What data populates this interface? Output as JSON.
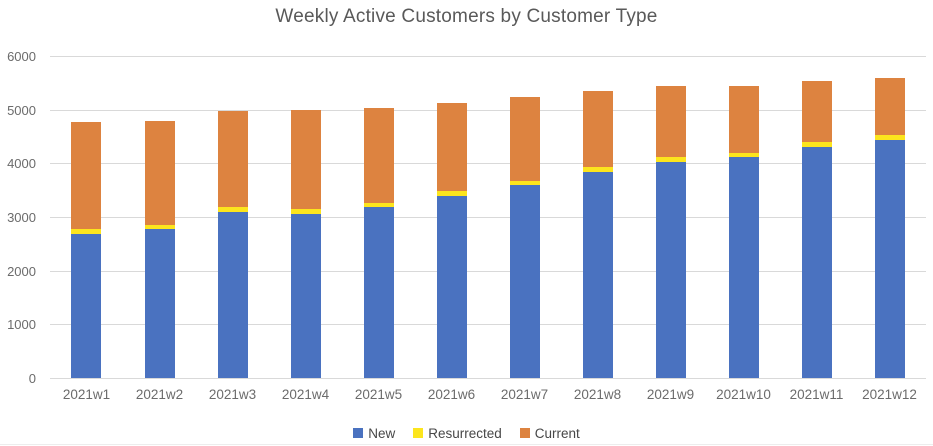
{
  "title": "Weekly Active Customers by Customer Type",
  "colors": {
    "new": "#4a72c0",
    "resurrected": "#fce51d",
    "current": "#dd8340",
    "gridline": "#d9d9d9",
    "title_text": "#595959",
    "axis_text": "#6b6b6b"
  },
  "chart_data": {
    "type": "bar",
    "stacked": true,
    "title": "Weekly Active Customers by Customer Type",
    "xlabel": "",
    "ylabel": "",
    "ylim": [
      0,
      6000
    ],
    "y_ticks": [
      6000,
      5000,
      4000,
      3000,
      2000,
      1000,
      0
    ],
    "grid": true,
    "legend_position": "bottom",
    "categories": [
      "2021w1",
      "2021w2",
      "2021w3",
      "2021w4",
      "2021w5",
      "2021w6",
      "2021w7",
      "2021w8",
      "2021w9",
      "2021w10",
      "2021w11",
      "2021w12"
    ],
    "series": [
      {
        "name": "New",
        "color": "#4a72c0",
        "values": [
          2680,
          2770,
          3100,
          3060,
          3180,
          3400,
          3590,
          3830,
          4020,
          4110,
          4300,
          4430
        ]
      },
      {
        "name": "Resurrected",
        "color": "#fce51d",
        "values": [
          90,
          90,
          90,
          90,
          90,
          80,
          90,
          100,
          90,
          90,
          100,
          90
        ]
      },
      {
        "name": "Current",
        "color": "#dd8340",
        "values": [
          2010,
          1920,
          1780,
          1840,
          1760,
          1650,
          1560,
          1420,
          1340,
          1250,
          1140,
          1070
        ]
      }
    ],
    "totals": [
      4780,
      4780,
      4970,
      4990,
      5030,
      5130,
      5240,
      5350,
      5450,
      5450,
      5540,
      5590
    ]
  }
}
